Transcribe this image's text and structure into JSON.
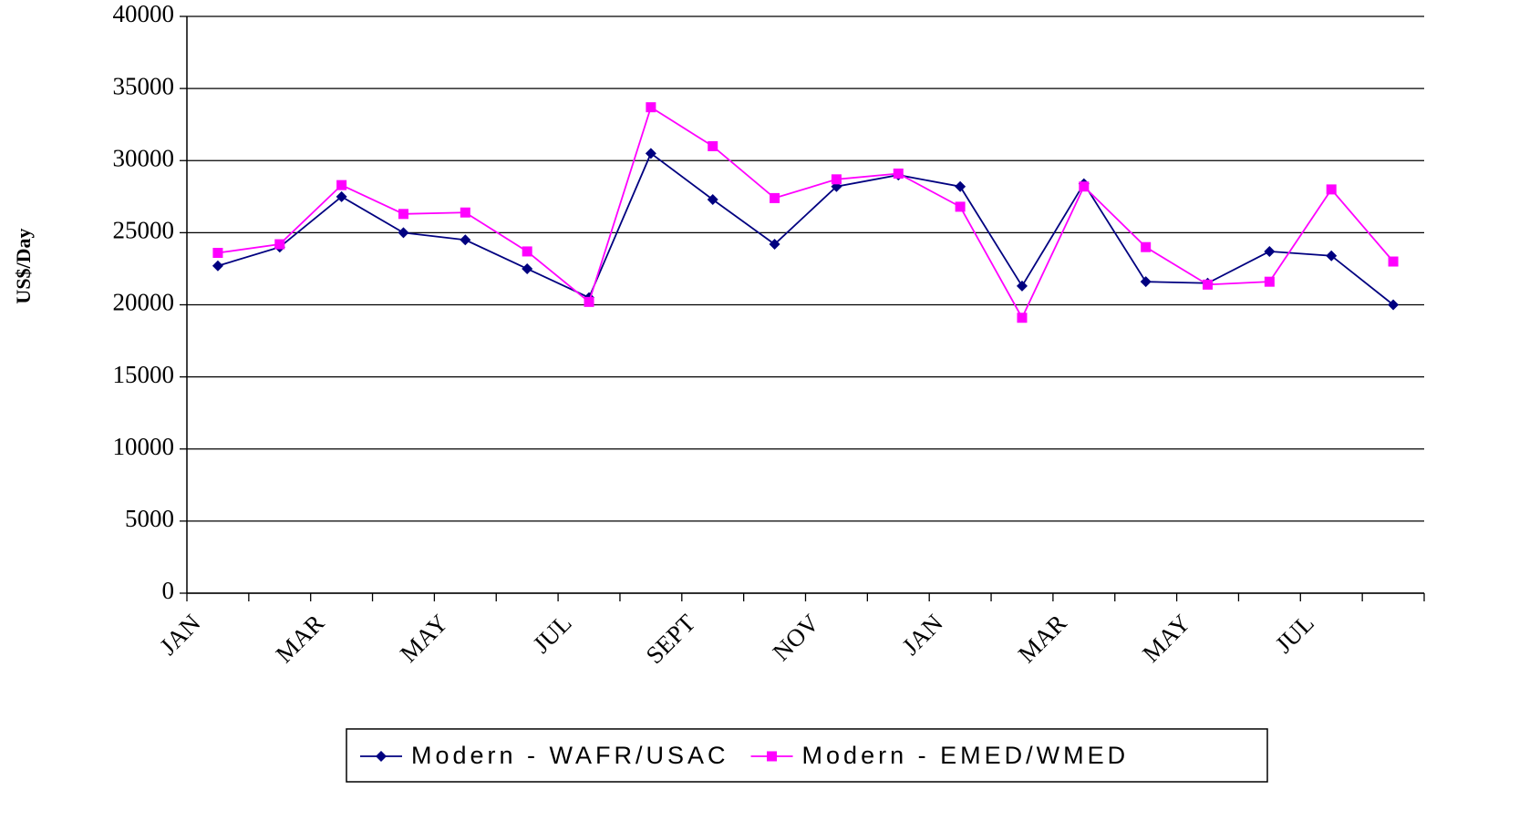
{
  "chart_data": {
    "type": "line",
    "y_label": "US$/Day",
    "categories": [
      "JAN",
      null,
      "MAR",
      null,
      "MAY",
      null,
      "JUL",
      null,
      "SEPT",
      null,
      "NOV",
      null,
      "JAN",
      null,
      "MAR",
      null,
      "MAY",
      null,
      "JUL",
      null
    ],
    "series": [
      {
        "name": "Modern - WAFR/USAC",
        "color": "#000080",
        "marker": "diamond",
        "values": [
          22700,
          24000,
          27500,
          25000,
          24500,
          22500,
          20500,
          30500,
          27300,
          24200,
          28200,
          29000,
          28200,
          21300,
          28400,
          21600,
          21500,
          23700,
          23400,
          20000
        ]
      },
      {
        "name": "Modern - EMED/WMED",
        "color": "#ff00ff",
        "marker": "square",
        "values": [
          23600,
          24200,
          28300,
          26300,
          26400,
          23700,
          20200,
          33700,
          31000,
          27400,
          28700,
          29100,
          26800,
          19100,
          28200,
          24000,
          21400,
          21600,
          28000,
          23000
        ]
      }
    ],
    "ylim": [
      0,
      40000
    ],
    "yticks": [
      0,
      5000,
      10000,
      15000,
      20000,
      25000,
      30000,
      35000,
      40000
    ],
    "grid": true
  }
}
